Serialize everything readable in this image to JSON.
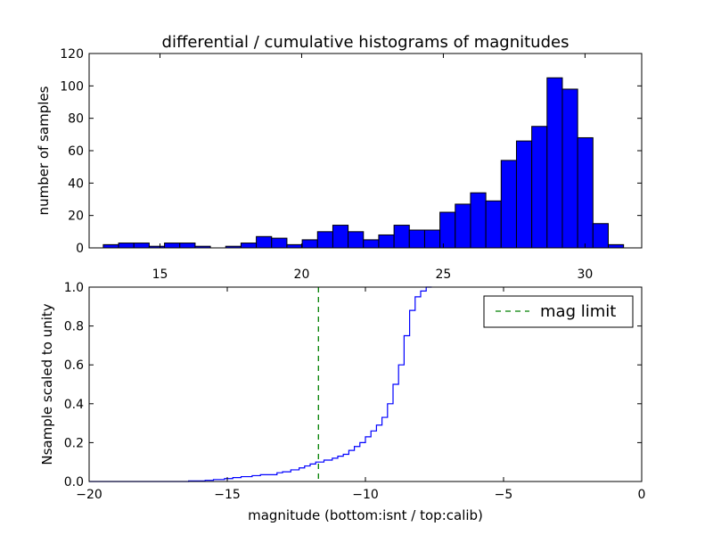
{
  "chart_data": [
    {
      "type": "bar",
      "title": "differential / cumulative histograms of magnitudes",
      "xlabel": "",
      "ylabel": "number of samples",
      "xlim": [
        12.5,
        32.0
      ],
      "ylim": [
        0,
        120
      ],
      "xticks": [
        15,
        20,
        25,
        30
      ],
      "yticks": [
        0,
        20,
        40,
        60,
        80,
        100,
        120
      ],
      "xtick_position": "top-of-bottom-panel",
      "bin_edges": [
        13.0,
        13.54,
        14.08,
        14.62,
        15.16,
        15.7,
        16.24,
        16.78,
        17.32,
        17.86,
        18.4,
        18.94,
        19.48,
        20.02,
        20.56,
        21.1,
        21.64,
        22.18,
        22.72,
        23.26,
        23.8,
        24.34,
        24.88,
        25.42,
        25.96,
        26.5,
        27.04,
        27.58,
        28.12,
        28.66,
        29.2,
        29.74,
        30.28,
        30.82,
        31.36
      ],
      "values": [
        2,
        3,
        3,
        1,
        3,
        3,
        1,
        0,
        1,
        3,
        7,
        6,
        2,
        5,
        10,
        14,
        10,
        5,
        8,
        14,
        11,
        11,
        22,
        27,
        34,
        29,
        54,
        66,
        75,
        105,
        98,
        68,
        15,
        2
      ],
      "bar_color": "#0000ff",
      "edge_color": "#000000",
      "grid": false
    },
    {
      "type": "line",
      "title": "",
      "xlabel": "magnitude (bottom:isnt / top:calib)",
      "ylabel": "Nsample scaled to unity",
      "xlim": [
        -20,
        0
      ],
      "ylim": [
        0.0,
        1.0
      ],
      "xticks": [
        -20,
        -15,
        -10,
        -5,
        0
      ],
      "xtick_labels": [
        "−20",
        "−15",
        "−10",
        "−5",
        "0"
      ],
      "yticks": [
        0.0,
        0.2,
        0.4,
        0.6,
        0.8,
        1.0
      ],
      "ytick_labels": [
        "0.0",
        "0.2",
        "0.4",
        "0.6",
        "0.8",
        "1.0"
      ],
      "grid": false,
      "legend_position": "top-right",
      "series": [
        {
          "step": true,
          "color": "#0000ff",
          "x": [
            -20.0,
            -16.4,
            -15.8,
            -15.5,
            -15.1,
            -14.8,
            -14.5,
            -14.1,
            -13.8,
            -13.2,
            -13.0,
            -12.7,
            -12.4,
            -12.2,
            -12.0,
            -11.8,
            -11.5,
            -11.2,
            -11.0,
            -10.8,
            -10.6,
            -10.4,
            -10.2,
            -10.0,
            -9.8,
            -9.6,
            -9.4,
            -9.2,
            -9.0,
            -8.8,
            -8.6,
            -8.4,
            -8.2,
            -8.0,
            -7.8,
            -7.6
          ],
          "y": [
            0.0,
            0.003,
            0.006,
            0.01,
            0.015,
            0.02,
            0.025,
            0.03,
            0.035,
            0.045,
            0.05,
            0.06,
            0.07,
            0.08,
            0.09,
            0.1,
            0.11,
            0.12,
            0.13,
            0.14,
            0.16,
            0.18,
            0.2,
            0.23,
            0.26,
            0.29,
            0.33,
            0.4,
            0.5,
            0.6,
            0.75,
            0.88,
            0.95,
            0.98,
            1.0,
            1.0
          ]
        },
        {
          "name": "mag limit",
          "type": "vline",
          "x": -11.7,
          "color": "#008000",
          "dashed": true
        }
      ]
    }
  ]
}
